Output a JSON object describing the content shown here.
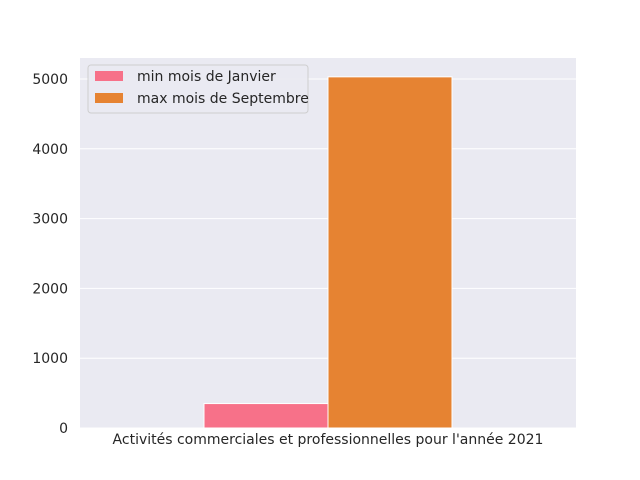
{
  "chart_data": {
    "type": "bar",
    "categories": [
      "Activités commerciales et professionnelles pour l'année 2021"
    ],
    "series": [
      {
        "name": "min mois de Janvier",
        "values": [
          350
        ],
        "color": "#f77189"
      },
      {
        "name": "max mois de Septembre",
        "values": [
          5030
        ],
        "color": "#e68332"
      }
    ],
    "xlabel": "Activités commerciales et professionnelles pour l'année 2021",
    "ylabel": "",
    "ylim": [
      0,
      5300
    ],
    "yticks": [
      0,
      1000,
      2000,
      3000,
      4000,
      5000
    ],
    "ytick_labels": [
      "0",
      "1000",
      "2000",
      "3000",
      "4000",
      "5000"
    ],
    "grid": true,
    "legend_position": "top-left",
    "background": "#eaeaf2"
  }
}
